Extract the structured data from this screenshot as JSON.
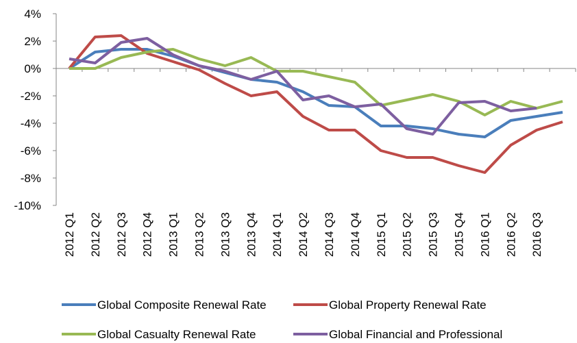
{
  "chart_data": {
    "type": "line",
    "categories": [
      "2012 Q1",
      "2012 Q2",
      "2012 Q3",
      "2012 Q4",
      "2013 Q1",
      "2013 Q2",
      "2013 Q3",
      "2013 Q4",
      "2014 Q1",
      "2014 Q2",
      "2014 Q3",
      "2014 Q4",
      "2015 Q1",
      "2015 Q2",
      "2015 Q3",
      "2015 Q4",
      "2016 Q1",
      "2016 Q2",
      "2016 Q3",
      null
    ],
    "series": [
      {
        "name": "Global Composite Renewal Rate",
        "color": "#4a7ebb",
        "values": [
          0,
          1.2,
          1.4,
          1.4,
          0.9,
          0.2,
          -0.3,
          -0.8,
          -1.0,
          -1.7,
          -2.7,
          -2.8,
          -4.2,
          -4.2,
          -4.4,
          -4.8,
          -5.0,
          -3.8,
          -3.5,
          -3.2
        ]
      },
      {
        "name": "Global Property Renewal Rate",
        "color": "#be4b48",
        "values": [
          0,
          2.3,
          2.4,
          1.1,
          0.5,
          -0.1,
          -1.1,
          -2.0,
          -1.7,
          -3.5,
          -4.5,
          -4.5,
          -6.0,
          -6.5,
          -6.5,
          -7.1,
          -7.6,
          -5.6,
          -4.5,
          -3.9
        ]
      },
      {
        "name": "Global Casualty Renewal Rate",
        "color": "#98b954",
        "values": [
          0,
          0,
          0.8,
          1.2,
          1.4,
          0.7,
          0.2,
          0.8,
          -0.2,
          -0.2,
          -0.6,
          -1.0,
          -2.7,
          -2.3,
          -1.9,
          -2.4,
          -3.4,
          -2.4,
          -2.9,
          -2.4
        ]
      },
      {
        "name": "Global Financial and Professional",
        "color": "#7d5fa0",
        "values": [
          0.7,
          0.4,
          1.9,
          2.2,
          1.0,
          0.2,
          -0.2,
          -0.8,
          -0.2,
          -2.3,
          -2.0,
          -2.8,
          -2.6,
          -4.4,
          -4.8,
          -2.5,
          -2.4,
          -3.1,
          -2.9,
          null
        ]
      }
    ],
    "ylim": [
      -10,
      4
    ],
    "yticks": [
      {
        "value": -10,
        "label": "-10%"
      },
      {
        "value": -8,
        "label": "-8%"
      },
      {
        "value": -6,
        "label": "-6%"
      },
      {
        "value": -4,
        "label": "-4%"
      },
      {
        "value": -2,
        "label": "-2%"
      },
      {
        "value": 0,
        "label": "0%"
      },
      {
        "value": 2,
        "label": "2%"
      },
      {
        "value": 4,
        "label": "4%"
      }
    ],
    "grid": false
  }
}
